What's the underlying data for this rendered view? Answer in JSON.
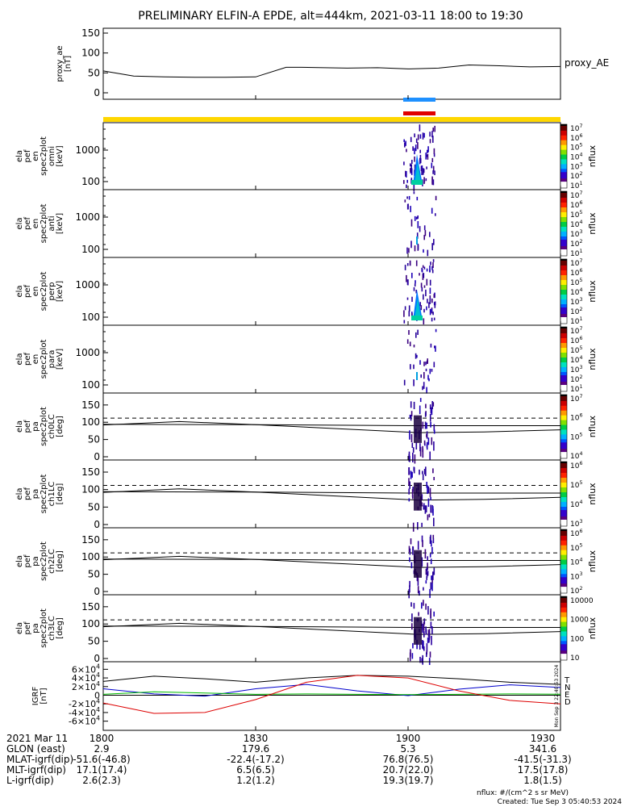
{
  "title": "PRELIMINARY ELFIN-A EPDE, alt=444km, 2021-03-11 18:00 to 19:30",
  "colors": {
    "ae_line": "#000000",
    "bar_blue": "#1e90ff",
    "bar_red": "#e00000",
    "bar_yellow": "#ffd700",
    "grf_t": "#000000",
    "grf_n": "#0000cc",
    "grf_e": "#00bb00",
    "grf_d": "#dd0000"
  },
  "chart_data": [
    {
      "type": "line",
      "panel": "proxy_ae",
      "ylabel": "proxy_ae\n[nT]",
      "legend": "proxy_AE",
      "ylim": [
        0,
        150
      ],
      "yticks": [
        "0",
        "50",
        "100",
        "150"
      ],
      "x_minutes": [
        0,
        6,
        12,
        18,
        24,
        30,
        36,
        39,
        48,
        54,
        60,
        66,
        72,
        78,
        84,
        90
      ],
      "values": [
        55,
        42,
        40,
        39,
        39,
        40,
        64,
        64,
        62,
        63,
        60,
        62,
        70,
        68,
        65,
        66
      ]
    },
    {
      "type": "heatmap",
      "panel": "omni",
      "ylabel": "ela\npef\nen\nspec2plot\nomni\n[keV]",
      "yticks": [
        "100",
        "1000"
      ],
      "colorbar_ticks": [
        "10^7",
        "10^6",
        "10^5",
        "10^4",
        "10^3",
        "10^2",
        "10^1"
      ],
      "colorbar_label": "nflux"
    },
    {
      "type": "heatmap",
      "panel": "anti",
      "ylabel": "ela\npef\nen\nspec2plot\nanti\n[keV]",
      "yticks": [
        "100",
        "1000"
      ],
      "colorbar_ticks": [
        "10^7",
        "10^6",
        "10^5",
        "10^4",
        "10^3",
        "10^2",
        "10^1"
      ],
      "colorbar_label": "nflux"
    },
    {
      "type": "heatmap",
      "panel": "perp",
      "ylabel": "ela\npef\nen\nspec2plot\nperp\n[keV]",
      "yticks": [
        "100",
        "1000"
      ],
      "colorbar_ticks": [
        "10^7",
        "10^6",
        "10^5",
        "10^4",
        "10^3",
        "10^2",
        "10^1"
      ],
      "colorbar_label": "nflux"
    },
    {
      "type": "heatmap",
      "panel": "para",
      "ylabel": "ela\npef\nen\nspec2plot\npara\n[keV]",
      "yticks": [
        "100",
        "1000"
      ],
      "colorbar_ticks": [
        "10^7",
        "10^6",
        "10^5",
        "10^4",
        "10^3",
        "10^2",
        "10^1"
      ],
      "colorbar_label": "nflux"
    },
    {
      "type": "heatmap",
      "panel": "ch0LC",
      "ylabel": "ela\npef\npa\nspec2plot\nch0LC\n[deg]",
      "ylim": [
        0,
        180
      ],
      "yticks": [
        "0",
        "50",
        "100",
        "150"
      ],
      "colorbar_ticks": [
        "10^7",
        "10^6",
        "10^5",
        "10^4"
      ],
      "colorbar_label": "nflux"
    },
    {
      "type": "heatmap",
      "panel": "ch1LC",
      "ylabel": "ela\npef\npa\nspec2plot\nch1LC\n[deg]",
      "ylim": [
        0,
        180
      ],
      "yticks": [
        "0",
        "50",
        "100",
        "150"
      ],
      "colorbar_ticks": [
        "10^6",
        "10^5",
        "10^4",
        "10^3"
      ],
      "colorbar_label": "nflux"
    },
    {
      "type": "heatmap",
      "panel": "ch2LC",
      "ylabel": "ela\npef\npa\nspec2plot\nch2LC\n[deg]",
      "ylim": [
        0,
        180
      ],
      "yticks": [
        "0",
        "50",
        "100",
        "150"
      ],
      "colorbar_ticks": [
        "10^6",
        "10^5",
        "10^4",
        "10^3",
        "10^2"
      ],
      "colorbar_label": "nflux"
    },
    {
      "type": "heatmap",
      "panel": "ch3LC",
      "ylabel": "ela\npef\npa\nspec2plot\nch3LC\n[deg]",
      "ylim": [
        0,
        180
      ],
      "yticks": [
        "0",
        "50",
        "100",
        "150"
      ],
      "colorbar_ticks": [
        "10000",
        "1000",
        "100",
        "10"
      ],
      "colorbar_label": "nflux"
    },
    {
      "type": "line",
      "panel": "IGRF",
      "ylabel": "IGRF\n[nT]",
      "ylim": [
        -70000,
        70000
      ],
      "yticks": [
        "-6×10^4",
        "-4×10^4",
        "-2×10^4",
        "0",
        "2×10^4",
        "4×10^4",
        "6×10^4"
      ],
      "legend_labels": [
        "T",
        "N",
        "E",
        "D"
      ],
      "side_text": "Mon Sep 3 22:40:53 2024",
      "x_minutes": [
        0,
        10,
        20,
        30,
        40,
        50,
        60,
        70,
        80,
        90
      ],
      "series": [
        {
          "name": "T",
          "values": [
            32000,
            44000,
            38000,
            30000,
            40000,
            46000,
            44000,
            38000,
            30000,
            25000
          ]
        },
        {
          "name": "N",
          "values": [
            15000,
            3000,
            -2000,
            15000,
            25000,
            10000,
            -1000,
            14000,
            24000,
            18000
          ]
        },
        {
          "name": "E",
          "values": [
            2000,
            8000,
            5000,
            2000,
            3000,
            2000,
            1500,
            2000,
            3000,
            2500
          ]
        },
        {
          "name": "D",
          "values": [
            -18000,
            -42000,
            -40000,
            -10000,
            30000,
            46000,
            40000,
            10000,
            -12000,
            -20000
          ]
        }
      ]
    }
  ],
  "xaxis": {
    "ticks": [
      "1800",
      "1830",
      "1900",
      "1930"
    ],
    "tick_minutes": [
      0,
      30,
      60,
      90
    ]
  },
  "footer": {
    "rows": [
      {
        "label": "2021 Mar 11",
        "values": [
          "1800",
          "1830",
          "1900",
          "1930"
        ]
      },
      {
        "label": "GLON (east)",
        "values": [
          "2.9",
          "179.6",
          "5.3",
          "341.6"
        ]
      },
      {
        "label": "MLAT-igrf(dip)",
        "values": [
          "-51.6(-46.8)",
          "-22.4(-17.2)",
          "76.8(76.5)",
          "-41.5(-31.3)"
        ]
      },
      {
        "label": "MLT-igrf(dip)",
        "values": [
          "17.1(17.4)",
          "6.5(6.5)",
          "20.7(22.0)",
          "17.5(17.8)"
        ]
      },
      {
        "label": "L-igrf(dip)",
        "values": [
          "2.6(2.3)",
          "1.2(1.2)",
          "19.3(19.7)",
          "1.8(1.5)"
        ]
      }
    ],
    "units_note": "nflux: #/(cm^2 s sr MeV)",
    "created": "Created: Tue Sep  3 05:40:53 2024"
  }
}
